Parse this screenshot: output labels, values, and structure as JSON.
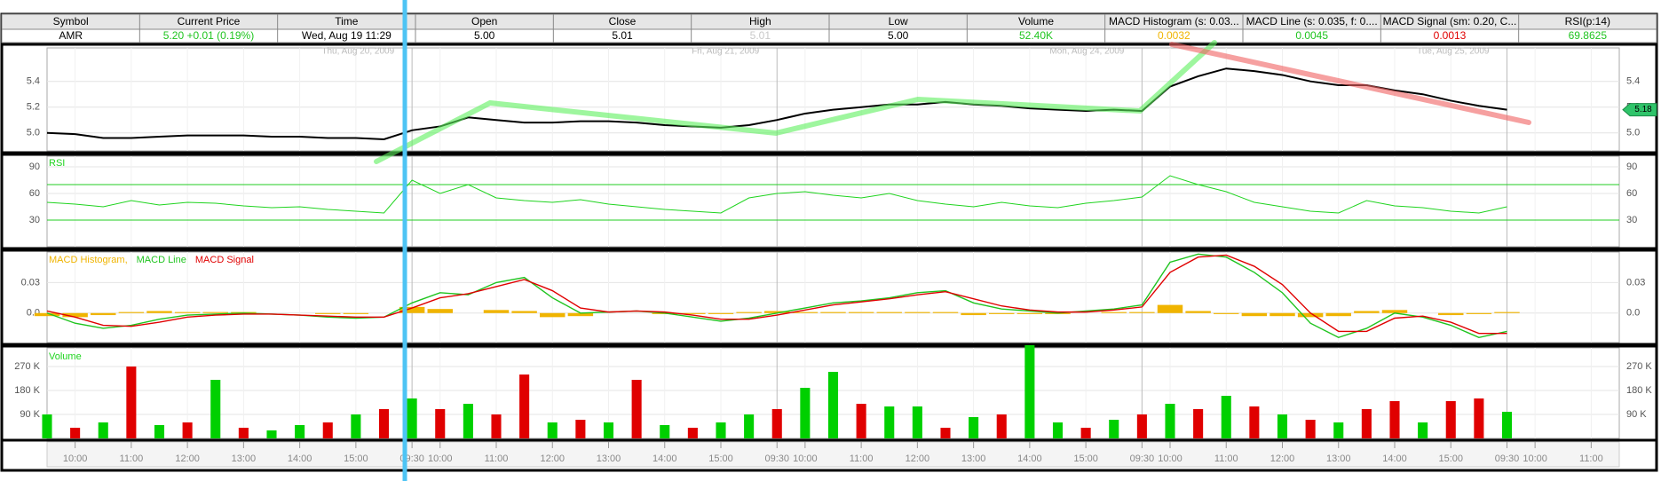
{
  "header": {
    "columns": [
      "Symbol",
      "Current Price",
      "Time",
      "Open",
      "Close",
      "High",
      "Low",
      "Volume",
      "MACD Histogram (s: 0.03...",
      "MACD Line (s: 0.035, f: 0....",
      "MACD Signal (sm: 0.20, C...",
      "RSI(p:14)"
    ],
    "values": [
      "AMR",
      "5.20  +0.01 (0.19%)",
      "Wed, Aug 19  11:29",
      "5.00",
      "5.01",
      "5.01",
      "5.00",
      "52.40K",
      "0.0032",
      "0.0045",
      "0.0013",
      "69.8625"
    ],
    "value_colors": [
      "#000000",
      "#1fc41f",
      "#000000",
      "#000000",
      "#000000",
      "#c8c8c8",
      "#000000",
      "#1fc41f",
      "#f0b400",
      "#1fc41f",
      "#e00000",
      "#1fc41f"
    ]
  },
  "xlim": [
    0,
    28
  ],
  "xticks": [
    {
      "value": 0.5,
      "label": "10:00"
    },
    {
      "value": 1.5,
      "label": "11:00"
    },
    {
      "value": 2.5,
      "label": "12:00"
    },
    {
      "value": 3.5,
      "label": "13:00"
    },
    {
      "value": 4.5,
      "label": "14:00"
    },
    {
      "value": 5.5,
      "label": "15:00"
    },
    {
      "value": 6.5,
      "label": "09:30"
    },
    {
      "value": 7,
      "label": "10:00"
    },
    {
      "value": 8,
      "label": "11:00"
    },
    {
      "value": 9,
      "label": "12:00"
    },
    {
      "value": 10,
      "label": "13:00"
    },
    {
      "value": 11,
      "label": "14:00"
    },
    {
      "value": 12,
      "label": "15:00"
    },
    {
      "value": 13,
      "label": "09:30"
    },
    {
      "value": 13.5,
      "label": "10:00"
    },
    {
      "value": 14.5,
      "label": "11:00"
    },
    {
      "value": 15.5,
      "label": "12:00"
    },
    {
      "value": 16.5,
      "label": "13:00"
    },
    {
      "value": 17.5,
      "label": "14:00"
    },
    {
      "value": 18.5,
      "label": "15:00"
    },
    {
      "value": 19.5,
      "label": "09:30"
    },
    {
      "value": 20,
      "label": "10:00"
    },
    {
      "value": 21,
      "label": "11:00"
    },
    {
      "value": 22,
      "label": "12:00"
    },
    {
      "value": 23,
      "label": "13:00"
    },
    {
      "value": 24,
      "label": "14:00"
    },
    {
      "value": 25,
      "label": "15:00"
    },
    {
      "value": 26,
      "label": "09:30"
    },
    {
      "value": 26.5,
      "label": "10:00"
    },
    {
      "value": 27.5,
      "label": "11:00"
    }
  ],
  "date_labels": [
    {
      "value": 6.5,
      "label": "Thu, Aug 20, 2009"
    },
    {
      "value": 13,
      "label": "Fri, Aug 21, 2009"
    },
    {
      "value": 19.5,
      "label": "Mon, Aug 24, 2009"
    },
    {
      "value": 26,
      "label": "Tue, Aug 25, 2009"
    }
  ],
  "x": [
    0,
    0.5,
    1,
    1.5,
    2,
    2.5,
    3,
    3.5,
    4,
    4.5,
    5,
    5.5,
    6,
    6.5,
    7,
    7.5,
    8,
    8.5,
    9,
    9.5,
    10,
    10.5,
    11,
    11.5,
    12,
    12.5,
    13,
    13.5,
    14,
    14.5,
    15,
    15.5,
    16,
    16.5,
    17,
    17.5,
    18,
    18.5,
    19,
    19.5,
    20,
    20.5,
    21,
    21.5,
    22,
    22.5,
    23,
    23.5,
    24,
    24.5,
    25,
    25.5,
    26
  ],
  "price": {
    "ylim": [
      4.86,
      5.66
    ],
    "yticks": [
      {
        "value": 5,
        "label": "5.0"
      },
      5.2,
      5.4
    ],
    "color": "#000000",
    "last_price": 5.18,
    "values": [
      5.0,
      4.99,
      4.96,
      4.96,
      4.97,
      4.98,
      4.98,
      4.98,
      4.97,
      4.97,
      4.96,
      4.96,
      4.95,
      5.02,
      5.05,
      5.12,
      5.1,
      5.08,
      5.08,
      5.09,
      5.09,
      5.08,
      5.06,
      5.05,
      5.04,
      5.06,
      5.1,
      5.15,
      5.18,
      5.2,
      5.22,
      5.22,
      5.24,
      5.22,
      5.21,
      5.19,
      5.18,
      5.17,
      5.18,
      5.17,
      5.36,
      5.44,
      5.5,
      5.48,
      5.45,
      5.4,
      5.37,
      5.37,
      5.33,
      5.3,
      5.25,
      5.21,
      5.18
    ]
  },
  "rsi": {
    "label": "RSI",
    "ylim": [
      0,
      102
    ],
    "yticks": [
      30,
      60,
      90
    ],
    "levels": [
      30,
      70
    ],
    "color": "#1fd41f",
    "values": [
      50,
      48,
      45,
      52,
      47,
      50,
      49,
      46,
      44,
      45,
      42,
      40,
      38,
      75,
      60,
      70,
      55,
      52,
      50,
      53,
      48,
      45,
      42,
      40,
      38,
      55,
      60,
      62,
      58,
      55,
      60,
      52,
      48,
      45,
      50,
      46,
      44,
      49,
      52,
      56,
      80,
      70,
      62,
      50,
      45,
      40,
      38,
      52,
      46,
      44,
      40,
      38,
      45
    ]
  },
  "macd": {
    "ylim": [
      -0.029,
      0.06
    ],
    "yticks": [
      {
        "value": 0,
        "label": "0.0"
      },
      0.03
    ],
    "histogram": {
      "name": "MACD Histogram,",
      "color": "#f0b400",
      "values": [
        -0.003,
        -0.004,
        -0.002,
        0.001,
        0.002,
        0.001,
        0.001,
        0.001,
        0,
        0,
        -0.001,
        -0.001,
        0,
        0.006,
        0.004,
        0,
        0.003,
        0.002,
        -0.004,
        -0.003,
        0,
        0,
        -0.001,
        -0.001,
        -0.001,
        0.001,
        0.002,
        0.001,
        0.001,
        0.001,
        0.001,
        0.001,
        0.001,
        -0.002,
        -0.001,
        -0.001,
        -0.001,
        0,
        0.001,
        0.001,
        0.008,
        0.002,
        -0.001,
        -0.003,
        -0.003,
        -0.004,
        -0.003,
        0.002,
        0.003,
        0,
        -0.002,
        -0.001,
        0.001
      ]
    },
    "lines": [
      {
        "name": "MACD Line",
        "color": "#1fc41f",
        "values": [
          0,
          -0.01,
          -0.015,
          -0.012,
          -0.006,
          -0.002,
          -0.001,
          0,
          -0.001,
          -0.002,
          -0.004,
          -0.005,
          -0.004,
          0.01,
          0.02,
          0.018,
          0.03,
          0.035,
          0.015,
          0,
          0.001,
          0.002,
          0,
          -0.004,
          -0.008,
          -0.005,
          0,
          0.005,
          0.01,
          0.012,
          0.015,
          0.02,
          0.022,
          0.01,
          0.004,
          0.002,
          0,
          0.002,
          0.004,
          0.008,
          0.05,
          0.058,
          0.055,
          0.04,
          0.02,
          -0.01,
          -0.024,
          -0.015,
          0,
          -0.004,
          -0.012,
          -0.024,
          -0.018
        ]
      },
      {
        "name": "MACD Signal",
        "color": "#e00000",
        "values": [
          0.002,
          -0.004,
          -0.012,
          -0.013,
          -0.009,
          -0.004,
          -0.002,
          -0.001,
          -0.001,
          -0.002,
          -0.003,
          -0.004,
          -0.004,
          0.005,
          0.015,
          0.019,
          0.026,
          0.033,
          0.022,
          0.005,
          0.001,
          0.002,
          0.001,
          -0.002,
          -0.006,
          -0.006,
          -0.002,
          0.003,
          0.008,
          0.011,
          0.014,
          0.018,
          0.021,
          0.014,
          0.007,
          0.003,
          0.001,
          0.001,
          0.003,
          0.006,
          0.04,
          0.055,
          0.057,
          0.046,
          0.028,
          0,
          -0.018,
          -0.018,
          -0.005,
          -0.003,
          -0.009,
          -0.02,
          -0.02
        ]
      }
    ]
  },
  "volume": {
    "label": "Volume",
    "ylim": [
      0,
      340000
    ],
    "yticks": [
      {
        "value": 90000,
        "label": "90 K"
      },
      {
        "value": 180000,
        "label": "180 K"
      },
      {
        "value": 270000,
        "label": "270 K"
      }
    ],
    "values": [
      90000,
      40000,
      60000,
      270000,
      50000,
      60000,
      220000,
      40000,
      30000,
      50000,
      60000,
      90000,
      110000,
      150000,
      110000,
      130000,
      90000,
      240000,
      60000,
      70000,
      60000,
      220000,
      50000,
      40000,
      60000,
      90000,
      110000,
      190000,
      250000,
      130000,
      120000,
      120000,
      40000,
      80000,
      90000,
      350000,
      60000,
      40000,
      70000,
      90000,
      130000,
      110000,
      160000,
      120000,
      90000,
      70000,
      60000,
      110000,
      140000,
      60000,
      140000,
      150000,
      100000
    ],
    "colors": [
      "#00d000",
      "#e00000",
      "#00d000",
      "#e00000",
      "#00d000",
      "#e00000",
      "#00d000",
      "#e00000",
      "#00d000",
      "#00d000",
      "#e00000",
      "#00d000",
      "#e00000",
      "#00d000",
      "#e00000",
      "#00d000",
      "#e00000",
      "#e00000",
      "#00d000",
      "#e00000",
      "#00d000",
      "#e00000",
      "#00d000",
      "#e00000",
      "#00d000",
      "#00d000",
      "#e00000",
      "#00d000",
      "#00d000",
      "#e00000",
      "#00d000",
      "#00d000",
      "#e00000",
      "#00d000",
      "#e00000",
      "#00d000",
      "#00d000",
      "#e00000",
      "#00d000",
      "#e00000",
      "#00d000",
      "#e00000",
      "#00d000",
      "#e00000",
      "#00d000",
      "#e00000",
      "#00d000",
      "#e00000",
      "#e00000",
      "#00d000",
      "#e00000",
      "#e00000",
      "#00d000"
    ]
  }
}
